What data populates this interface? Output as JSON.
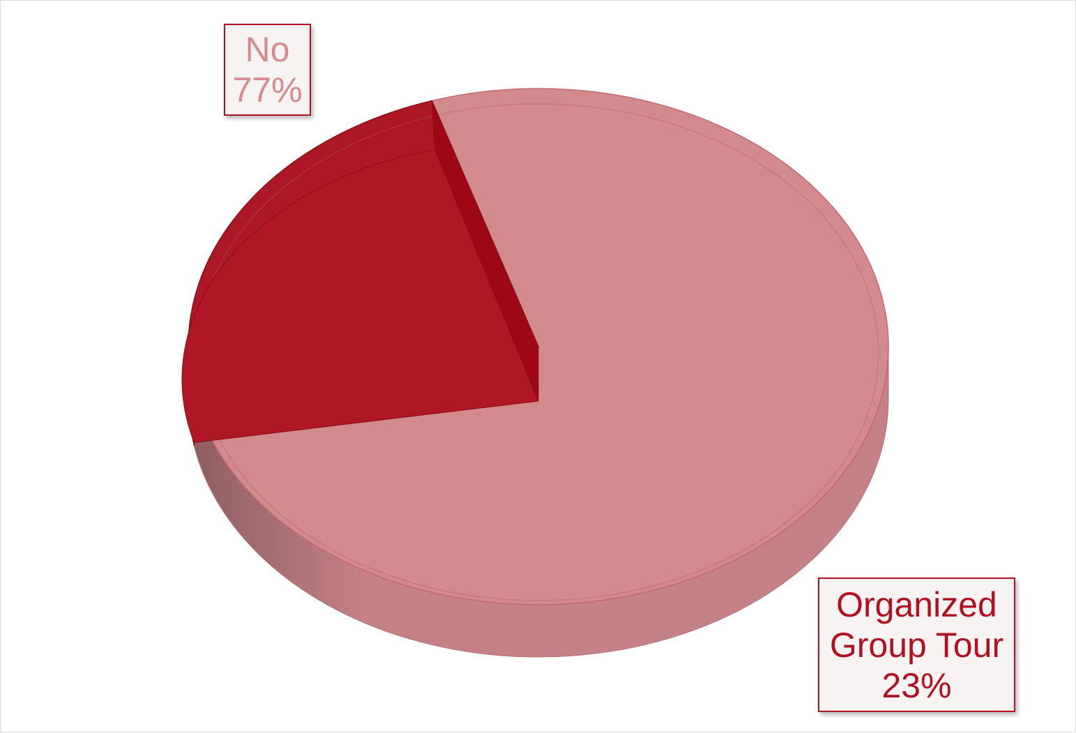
{
  "chart_data": {
    "type": "pie",
    "title": "",
    "slices": [
      {
        "label": "No",
        "value": 77,
        "percent_label": "77%",
        "color": "#d28a8d",
        "color_dark": "#b86e72"
      },
      {
        "label": "Organized Group Tour",
        "label_lines": [
          "Organized",
          "Group Tour"
        ],
        "value": 23,
        "percent_label": "23%",
        "color": "#ad1826",
        "color_dark": "#8a0e1a"
      }
    ],
    "style": "3d",
    "legend": "none",
    "data_labels": "category-and-percent"
  }
}
